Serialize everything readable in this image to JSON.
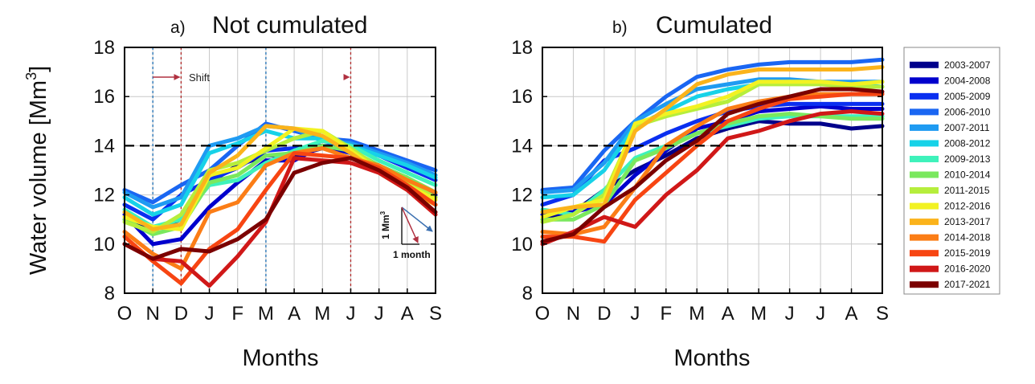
{
  "figure": {
    "panel_a": {
      "tag": "a)",
      "title": "Not cumulated"
    },
    "panel_b": {
      "tag": "b)",
      "title": "Cumulated"
    },
    "y_axis_label": "Water volume [Mm",
    "y_axis_label_sup": "3",
    "y_axis_label_end": "]",
    "x_axis_label": "Months",
    "shift_label": "Shift",
    "inset": {
      "y_label": "1 Mm",
      "y_label_sup": "3",
      "x_label": "1 month"
    },
    "colors": {
      "blue_marker": "#1f6fb4",
      "red_marker": "#b02a2a",
      "arrow_blue": "#3a6fb0",
      "arrow_red": "#b03040"
    }
  },
  "chart_data": [
    {
      "type": "line",
      "panel": "a",
      "title": "Not cumulated",
      "xlabel": "Months",
      "ylabel": "Water volume [Mm3]",
      "x": [
        "O",
        "N",
        "D",
        "J",
        "F",
        "M",
        "A",
        "M",
        "J",
        "J",
        "A",
        "S"
      ],
      "ylim": [
        8,
        18
      ],
      "yticks": [
        8,
        10,
        12,
        14,
        16,
        18
      ],
      "grid": true,
      "reference_line_y": 14,
      "vertical_markers": [
        {
          "month_index": 1,
          "color": "blue"
        },
        {
          "month_index": 2,
          "color": "red"
        },
        {
          "month_index": 5,
          "color": "blue"
        },
        {
          "month_index": 8,
          "color": "red"
        }
      ],
      "series": [
        {
          "name": "2003-2007",
          "color": "#00008b",
          "values": [
            11.0,
            10.6,
            11.0,
            12.5,
            13.2,
            13.6,
            13.6,
            13.9,
            13.8,
            13.1,
            12.5,
            12.0
          ]
        },
        {
          "name": "2004-2008",
          "color": "#0000cd",
          "values": [
            11.2,
            10.0,
            10.2,
            11.5,
            12.5,
            13.4,
            13.4,
            14.0,
            13.7,
            13.0,
            12.4,
            11.9
          ]
        },
        {
          "name": "2005-2009",
          "color": "#0a2ff0",
          "values": [
            11.6,
            11.0,
            12.0,
            12.6,
            13.1,
            13.8,
            13.9,
            14.0,
            14.0,
            13.6,
            13.1,
            12.6
          ]
        },
        {
          "name": "2006-2010",
          "color": "#1a66f2",
          "values": [
            12.2,
            11.7,
            12.4,
            13.0,
            14.0,
            14.9,
            14.6,
            14.3,
            14.2,
            13.8,
            13.4,
            13.0
          ]
        },
        {
          "name": "2007-2011",
          "color": "#1f9bf2",
          "values": [
            12.1,
            11.5,
            11.9,
            14.0,
            14.3,
            14.8,
            14.7,
            14.2,
            14.1,
            13.7,
            13.3,
            12.8
          ]
        },
        {
          "name": "2008-2012",
          "color": "#17d2e8",
          "values": [
            11.9,
            11.2,
            11.6,
            13.7,
            14.1,
            14.6,
            14.3,
            14.3,
            14.0,
            13.6,
            13.2,
            12.7
          ]
        },
        {
          "name": "2009-2013",
          "color": "#3ef2bb",
          "values": [
            11.4,
            10.7,
            11.0,
            12.4,
            12.6,
            13.3,
            13.8,
            14.2,
            14.0,
            13.4,
            12.9,
            12.4
          ]
        },
        {
          "name": "2010-2014",
          "color": "#7ae85e",
          "values": [
            11.0,
            10.4,
            10.7,
            12.5,
            12.8,
            13.6,
            13.7,
            14.0,
            13.8,
            13.2,
            12.7,
            12.1
          ]
        },
        {
          "name": "2011-2015",
          "color": "#b6ee3c",
          "values": [
            10.9,
            10.5,
            11.2,
            13.0,
            13.3,
            13.8,
            14.3,
            14.6,
            13.9,
            13.1,
            12.5,
            11.9
          ]
        },
        {
          "name": "2012-2016",
          "color": "#f2f222",
          "values": [
            11.1,
            10.7,
            10.6,
            12.8,
            13.1,
            13.9,
            14.7,
            14.6,
            13.8,
            13.0,
            12.4,
            11.8
          ]
        },
        {
          "name": "2013-2017",
          "color": "#fbb31b",
          "values": [
            11.3,
            10.6,
            10.8,
            12.9,
            13.6,
            14.8,
            14.7,
            14.4,
            13.7,
            12.9,
            12.2,
            11.6
          ]
        },
        {
          "name": "2014-2018",
          "color": "#fb7d16",
          "values": [
            10.5,
            9.6,
            9.0,
            11.3,
            11.7,
            13.2,
            13.7,
            13.9,
            13.5,
            13.2,
            12.6,
            12.1
          ]
        },
        {
          "name": "2015-2019",
          "color": "#f74512",
          "values": [
            10.3,
            9.3,
            8.4,
            9.8,
            10.6,
            12.2,
            13.7,
            13.6,
            13.5,
            13.1,
            12.4,
            11.6
          ]
        },
        {
          "name": "2016-2020",
          "color": "#d01818",
          "values": [
            10.0,
            9.4,
            9.3,
            8.3,
            9.5,
            10.9,
            13.5,
            13.4,
            13.3,
            12.9,
            12.2,
            11.2
          ]
        },
        {
          "name": "2017-2021",
          "color": "#7b0000",
          "values": [
            10.0,
            9.4,
            9.8,
            9.7,
            10.2,
            11.0,
            12.9,
            13.3,
            13.5,
            13.0,
            12.3,
            11.3
          ]
        }
      ]
    },
    {
      "type": "line",
      "panel": "b",
      "title": "Cumulated",
      "xlabel": "Months",
      "ylabel": "Water volume [Mm3]",
      "x": [
        "O",
        "N",
        "D",
        "J",
        "F",
        "M",
        "A",
        "M",
        "J",
        "J",
        "A",
        "S"
      ],
      "ylim": [
        8,
        18
      ],
      "yticks": [
        8,
        10,
        12,
        14,
        16,
        18
      ],
      "grid": true,
      "reference_line_y": 14,
      "legend_position": "right",
      "series": [
        {
          "name": "2003-2007",
          "color": "#00008b",
          "values": [
            11.0,
            11.3,
            12.2,
            13.0,
            13.6,
            14.3,
            14.7,
            15.0,
            14.9,
            14.9,
            14.7,
            14.8
          ]
        },
        {
          "name": "2004-2008",
          "color": "#0000cd",
          "values": [
            11.2,
            11.3,
            11.6,
            12.8,
            13.8,
            14.7,
            15.0,
            15.4,
            15.5,
            15.6,
            15.5,
            15.5
          ]
        },
        {
          "name": "2005-2009",
          "color": "#0a2ff0",
          "values": [
            11.6,
            12.0,
            13.4,
            13.9,
            14.5,
            15.0,
            15.4,
            15.6,
            15.7,
            15.7,
            15.7,
            15.7
          ]
        },
        {
          "name": "2006-2010",
          "color": "#1a66f2",
          "values": [
            12.2,
            12.3,
            13.8,
            15.0,
            16.0,
            16.8,
            17.1,
            17.3,
            17.4,
            17.4,
            17.4,
            17.5
          ]
        },
        {
          "name": "2007-2011",
          "color": "#1f9bf2",
          "values": [
            12.1,
            12.2,
            13.3,
            15.0,
            15.7,
            16.3,
            16.5,
            16.7,
            16.7,
            16.6,
            16.6,
            16.6
          ]
        },
        {
          "name": "2008-2012",
          "color": "#17d2e8",
          "values": [
            11.9,
            12.0,
            13.0,
            14.8,
            15.4,
            16.0,
            16.3,
            16.5,
            16.6,
            16.5,
            16.5,
            16.4
          ]
        },
        {
          "name": "2009-2013",
          "color": "#3ef2bb",
          "values": [
            11.4,
            11.2,
            12.2,
            13.5,
            14.0,
            14.5,
            14.8,
            15.1,
            15.2,
            15.2,
            15.2,
            15.2
          ]
        },
        {
          "name": "2010-2014",
          "color": "#7ae85e",
          "values": [
            11.0,
            11.0,
            11.6,
            13.4,
            13.9,
            14.5,
            14.9,
            15.2,
            15.3,
            15.2,
            15.1,
            15.1
          ]
        },
        {
          "name": "2011-2015",
          "color": "#b6ee3c",
          "values": [
            10.9,
            11.2,
            12.0,
            14.8,
            15.2,
            15.5,
            15.8,
            16.5,
            16.5,
            16.5,
            16.4,
            16.4
          ]
        },
        {
          "name": "2012-2016",
          "color": "#f2f222",
          "values": [
            11.1,
            11.5,
            11.8,
            14.9,
            15.3,
            15.6,
            16.0,
            16.6,
            16.6,
            16.6,
            16.5,
            16.6
          ]
        },
        {
          "name": "2013-2017",
          "color": "#fbb31b",
          "values": [
            11.3,
            11.5,
            11.6,
            14.6,
            15.5,
            16.5,
            16.9,
            17.1,
            17.1,
            17.1,
            17.1,
            17.2
          ]
        },
        {
          "name": "2014-2018",
          "color": "#fb7d16",
          "values": [
            10.5,
            10.4,
            10.7,
            12.3,
            14.0,
            14.8,
            15.5,
            15.8,
            16.0,
            16.1,
            16.1,
            16.1
          ]
        },
        {
          "name": "2015-2019",
          "color": "#f74512",
          "values": [
            10.3,
            10.3,
            10.1,
            11.8,
            12.9,
            14.0,
            15.0,
            15.5,
            15.9,
            16.0,
            16.1,
            16.1
          ]
        },
        {
          "name": "2016-2020",
          "color": "#d01818",
          "values": [
            10.0,
            10.5,
            11.1,
            10.7,
            12.0,
            13.0,
            14.3,
            14.6,
            15.0,
            15.3,
            15.4,
            15.3
          ]
        },
        {
          "name": "2017-2021",
          "color": "#7b0000",
          "values": [
            10.1,
            10.4,
            11.5,
            12.3,
            13.4,
            14.2,
            15.3,
            15.7,
            16.0,
            16.3,
            16.3,
            16.2
          ]
        }
      ]
    }
  ]
}
